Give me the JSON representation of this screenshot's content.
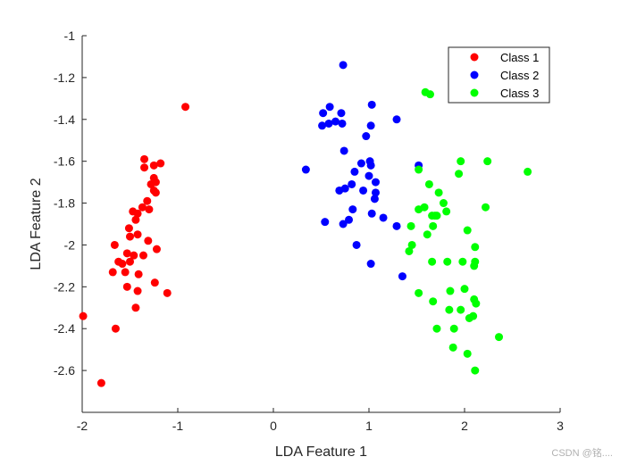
{
  "watermark": "CSDN @铭....",
  "chart_data": {
    "type": "scatter",
    "xlabel": "LDA Feature 1",
    "ylabel": "LDA Feature 2",
    "xlim": [
      -2,
      3
    ],
    "ylim": [
      -2.8,
      -1
    ],
    "xticks": [
      -2,
      -1,
      0,
      1,
      2,
      3
    ],
    "yticks": [
      -2.6,
      -2.4,
      -2.2,
      -2,
      -1.8,
      -1.6,
      -1.4,
      -1.2,
      -1
    ],
    "grid": false,
    "legend": "top-right",
    "series": [
      {
        "name": "Class 1",
        "color": "#ff0000",
        "points": [
          [
            -0.92,
            -1.34
          ],
          [
            -1.35,
            -1.59
          ],
          [
            -1.35,
            -1.63
          ],
          [
            -1.25,
            -1.62
          ],
          [
            -1.18,
            -1.61
          ],
          [
            -1.25,
            -1.68
          ],
          [
            -1.23,
            -1.7
          ],
          [
            -1.28,
            -1.71
          ],
          [
            -1.25,
            -1.74
          ],
          [
            -1.23,
            -1.75
          ],
          [
            -1.32,
            -1.79
          ],
          [
            -1.3,
            -1.83
          ],
          [
            -1.37,
            -1.82
          ],
          [
            -1.42,
            -1.85
          ],
          [
            -1.47,
            -1.84
          ],
          [
            -1.44,
            -1.88
          ],
          [
            -1.51,
            -1.92
          ],
          [
            -1.5,
            -1.96
          ],
          [
            -1.42,
            -1.95
          ],
          [
            -1.31,
            -1.98
          ],
          [
            -1.22,
            -2.02
          ],
          [
            -1.66,
            -2.0
          ],
          [
            -1.53,
            -2.04
          ],
          [
            -1.46,
            -2.05
          ],
          [
            -1.36,
            -2.05
          ],
          [
            -1.62,
            -2.08
          ],
          [
            -1.58,
            -2.09
          ],
          [
            -1.5,
            -2.08
          ],
          [
            -1.55,
            -2.13
          ],
          [
            -1.68,
            -2.13
          ],
          [
            -1.41,
            -2.14
          ],
          [
            -1.24,
            -2.18
          ],
          [
            -1.53,
            -2.2
          ],
          [
            -1.42,
            -2.22
          ],
          [
            -1.11,
            -2.23
          ],
          [
            -1.44,
            -2.3
          ],
          [
            -1.65,
            -2.4
          ],
          [
            -1.99,
            -2.34
          ],
          [
            -1.8,
            -2.66
          ]
        ]
      },
      {
        "name": "Class 2",
        "color": "#0000ff",
        "points": [
          [
            0.73,
            -1.14
          ],
          [
            0.59,
            -1.34
          ],
          [
            0.52,
            -1.37
          ],
          [
            1.03,
            -1.33
          ],
          [
            0.71,
            -1.37
          ],
          [
            0.58,
            -1.42
          ],
          [
            0.65,
            -1.41
          ],
          [
            0.51,
            -1.43
          ],
          [
            0.72,
            -1.42
          ],
          [
            1.02,
            -1.43
          ],
          [
            1.29,
            -1.4
          ],
          [
            0.97,
            -1.48
          ],
          [
            0.74,
            -1.55
          ],
          [
            0.92,
            -1.61
          ],
          [
            1.01,
            -1.6
          ],
          [
            1.02,
            -1.62
          ],
          [
            0.85,
            -1.65
          ],
          [
            1.52,
            -1.62
          ],
          [
            0.34,
            -1.64
          ],
          [
            1.0,
            -1.67
          ],
          [
            1.07,
            -1.7
          ],
          [
            0.82,
            -1.71
          ],
          [
            0.75,
            -1.73
          ],
          [
            0.69,
            -1.74
          ],
          [
            0.94,
            -1.74
          ],
          [
            1.07,
            -1.75
          ],
          [
            1.06,
            -1.78
          ],
          [
            0.83,
            -1.83
          ],
          [
            1.03,
            -1.85
          ],
          [
            1.15,
            -1.87
          ],
          [
            0.54,
            -1.89
          ],
          [
            0.79,
            -1.88
          ],
          [
            0.73,
            -1.9
          ],
          [
            1.29,
            -1.91
          ],
          [
            0.87,
            -2.0
          ],
          [
            1.02,
            -2.09
          ],
          [
            1.35,
            -2.15
          ]
        ]
      },
      {
        "name": "Class 3",
        "color": "#00ff00",
        "points": [
          [
            1.59,
            -1.27
          ],
          [
            1.64,
            -1.28
          ],
          [
            2.24,
            -1.6
          ],
          [
            1.96,
            -1.6
          ],
          [
            1.52,
            -1.64
          ],
          [
            2.66,
            -1.65
          ],
          [
            1.94,
            -1.66
          ],
          [
            1.63,
            -1.71
          ],
          [
            1.73,
            -1.75
          ],
          [
            1.78,
            -1.8
          ],
          [
            2.22,
            -1.82
          ],
          [
            1.58,
            -1.82
          ],
          [
            1.52,
            -1.83
          ],
          [
            1.81,
            -1.84
          ],
          [
            1.69,
            -1.86
          ],
          [
            1.66,
            -1.86
          ],
          [
            1.71,
            -1.86
          ],
          [
            1.44,
            -1.91
          ],
          [
            1.67,
            -1.91
          ],
          [
            1.61,
            -1.95
          ],
          [
            2.03,
            -1.93
          ],
          [
            1.45,
            -2.0
          ],
          [
            2.11,
            -2.01
          ],
          [
            1.42,
            -2.03
          ],
          [
            1.66,
            -2.08
          ],
          [
            1.82,
            -2.08
          ],
          [
            2.11,
            -2.08
          ],
          [
            1.98,
            -2.08
          ],
          [
            2.1,
            -2.1
          ],
          [
            1.52,
            -2.23
          ],
          [
            1.85,
            -2.22
          ],
          [
            2.0,
            -2.21
          ],
          [
            1.67,
            -2.27
          ],
          [
            2.1,
            -2.26
          ],
          [
            2.12,
            -2.28
          ],
          [
            1.84,
            -2.31
          ],
          [
            1.96,
            -2.31
          ],
          [
            2.05,
            -2.35
          ],
          [
            2.09,
            -2.34
          ],
          [
            1.71,
            -2.4
          ],
          [
            1.89,
            -2.4
          ],
          [
            2.36,
            -2.44
          ],
          [
            1.88,
            -2.49
          ],
          [
            2.03,
            -2.52
          ],
          [
            2.11,
            -2.6
          ]
        ]
      }
    ]
  }
}
